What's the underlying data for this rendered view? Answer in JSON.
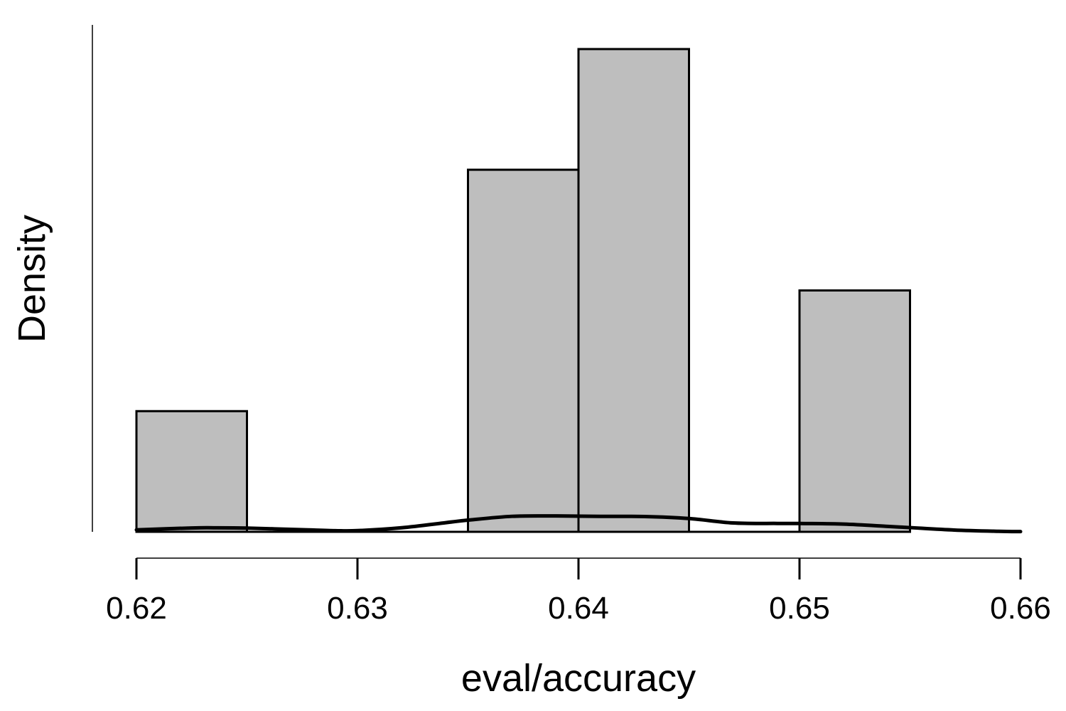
{
  "chart_data": {
    "type": "bar",
    "subtype": "histogram-with-density",
    "xlabel": "eval/accuracy",
    "ylabel": "Density",
    "xlim": [
      0.62,
      0.66
    ],
    "x_ticks": [
      "0.62",
      "0.63",
      "0.64",
      "0.65",
      "0.66"
    ],
    "y_ticks_shown": false,
    "grid": false,
    "legend": "none",
    "bin_width": 0.005,
    "bins": [
      {
        "start": 0.62,
        "end": 0.625,
        "count": 1
      },
      {
        "start": 0.625,
        "end": 0.63,
        "count": 0
      },
      {
        "start": 0.63,
        "end": 0.635,
        "count": 0
      },
      {
        "start": 0.635,
        "end": 0.64,
        "count": 3
      },
      {
        "start": 0.64,
        "end": 0.645,
        "count": 4
      },
      {
        "start": 0.645,
        "end": 0.65,
        "count": 0
      },
      {
        "start": 0.65,
        "end": 0.655,
        "count": 2
      }
    ],
    "density_curve": {
      "x": [
        0.62,
        0.6225,
        0.6235,
        0.625,
        0.6275,
        0.629,
        0.63,
        0.632,
        0.634,
        0.635,
        0.637,
        0.639,
        0.641,
        0.643,
        0.645,
        0.647,
        0.649,
        0.65,
        0.652,
        0.654,
        0.655,
        0.657,
        0.659,
        0.66
      ],
      "y": [
        0.33,
        0.64,
        0.67,
        0.62,
        0.35,
        0.19,
        0.2,
        0.68,
        1.52,
        1.94,
        2.57,
        2.63,
        2.56,
        2.54,
        2.21,
        1.47,
        1.39,
        1.38,
        1.28,
        0.9,
        0.7,
        0.3,
        0.09,
        0.04
      ]
    },
    "colors": {
      "bar_fill": "#bebebe",
      "bar_stroke": "#000000",
      "curve": "#000000"
    }
  }
}
